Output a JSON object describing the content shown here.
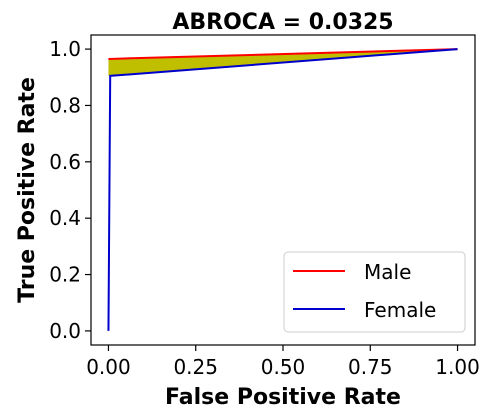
{
  "chart_data": {
    "type": "line",
    "title": "ABROCA = 0.0325",
    "xlabel": "False Positive Rate",
    "ylabel": "True Positive Rate",
    "xlim": [
      0,
      1
    ],
    "ylim": [
      0,
      1
    ],
    "xticks": [
      "0.00",
      "0.25",
      "0.50",
      "0.75",
      "1.00"
    ],
    "yticks": [
      "0.0",
      "0.2",
      "0.4",
      "0.6",
      "0.8",
      "1.0"
    ],
    "grid": false,
    "legend_position": "bottom-right",
    "series": [
      {
        "name": "Male",
        "color": "#ff0000",
        "points": [
          [
            0,
            0.965
          ],
          [
            1,
            1
          ]
        ]
      },
      {
        "name": "Female",
        "color": "#0000cc",
        "points": [
          [
            0,
            0
          ],
          [
            0.005,
            0.905
          ],
          [
            1,
            1
          ]
        ]
      }
    ],
    "fill_between": {
      "color": "#bfbf00",
      "between_series": [
        "Male",
        "Female"
      ]
    }
  }
}
